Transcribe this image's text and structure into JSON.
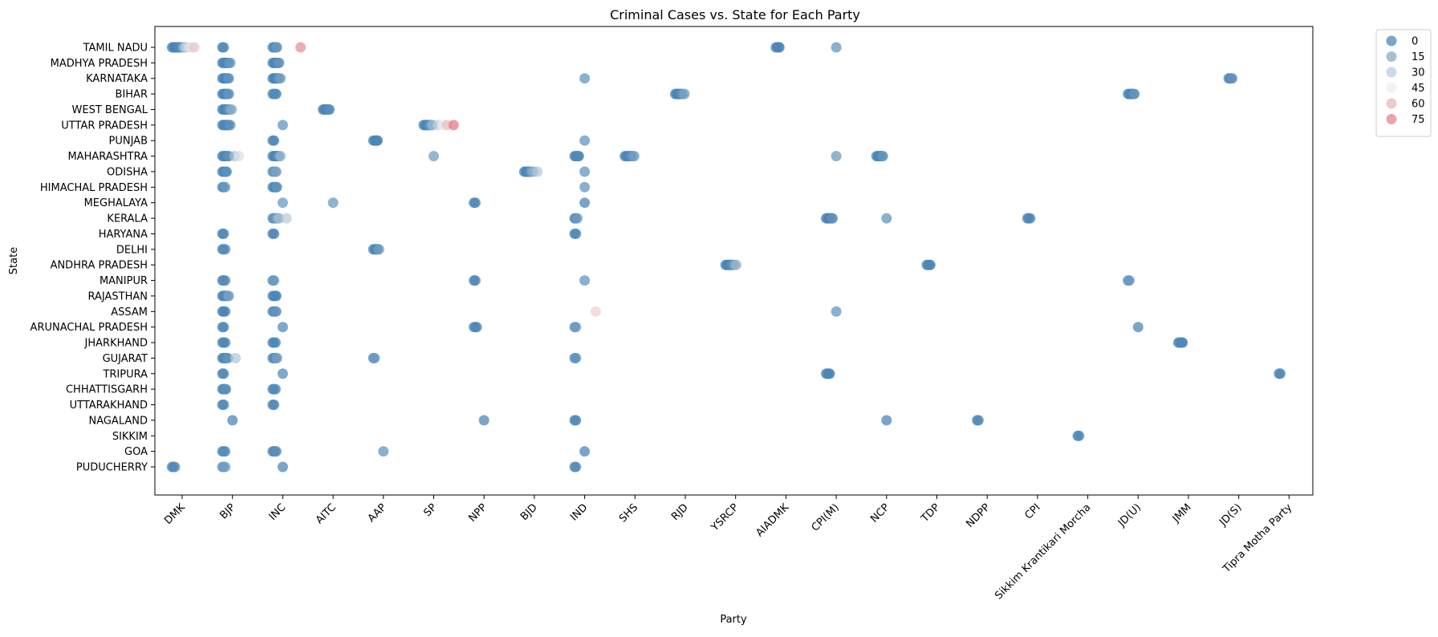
{
  "chart_data": {
    "type": "scatter",
    "title": "Criminal Cases vs. State for Each Party",
    "xlabel": "Party",
    "ylabel": "State",
    "x_categories": [
      "DMK",
      "BJP",
      "INC",
      "AITC",
      "AAP",
      "SP",
      "NPP",
      "BJD",
      "IND",
      "SHS",
      "RJD",
      "YSRCP",
      "AIADMK",
      "CPI(M)",
      "NCP",
      "TDP",
      "NDPP",
      "CPI",
      "Sikkim Krantikari Morcha",
      "JD(U)",
      "JMM",
      "JD(S)",
      "Tipra Motha Party"
    ],
    "y_categories": [
      "TAMIL NADU",
      "MADHYA PRADESH",
      "KARNATAKA",
      "BIHAR",
      "WEST BENGAL",
      "UTTAR PRADESH",
      "PUNJAB",
      "MAHARASHTRA",
      "ODISHA",
      "HIMACHAL PRADESH",
      "MEGHALAYA",
      "KERALA",
      "HARYANA",
      "DELHI",
      "ANDHRA PRADESH",
      "MANIPUR",
      "RAJASTHAN",
      "ASSAM",
      "ARUNACHAL PRADESH",
      "JHARKHAND",
      "GUJARAT",
      "TRIPURA",
      "CHHATTISGARH",
      "UTTARAKHAND",
      "NAGALAND",
      "SIKKIM",
      "GOA",
      "PUDUCHERRY"
    ],
    "hue_label": "Criminal cases",
    "legend": {
      "title": "",
      "position": "upper right, outside plot",
      "entries": [
        "0",
        "15",
        "30",
        "45",
        "60",
        "75"
      ]
    },
    "colormap": {
      "low": "#4682b4",
      "mid": "#eeeeee",
      "high": "#e0707a",
      "range": [
        0,
        80
      ]
    },
    "jitter_note": "strip plot: horizontal jitter within each party column",
    "groups": [
      {
        "party": "DMK",
        "state": "TAMIL NADU",
        "cases": [
          0,
          0,
          0,
          0,
          1,
          1,
          2,
          3,
          5,
          8,
          12,
          18,
          25,
          32,
          40,
          48,
          55
        ]
      },
      {
        "party": "DMK",
        "state": "PUDUCHERRY",
        "cases": [
          0,
          1,
          4
        ]
      },
      {
        "party": "BJP",
        "state": "TAMIL NADU",
        "cases": [
          0,
          1
        ]
      },
      {
        "party": "BJP",
        "state": "MADHYA PRADESH",
        "cases": [
          0,
          0,
          0,
          1,
          2,
          3,
          6,
          9
        ]
      },
      {
        "party": "BJP",
        "state": "KARNATAKA",
        "cases": [
          0,
          0,
          0,
          1,
          2,
          4,
          8
        ]
      },
      {
        "party": "BJP",
        "state": "BIHAR",
        "cases": [
          0,
          0,
          0,
          1,
          2,
          5,
          8
        ]
      },
      {
        "party": "BJP",
        "state": "WEST BENGAL",
        "cases": [
          0,
          0,
          0,
          1,
          2,
          4,
          7,
          12,
          18
        ]
      },
      {
        "party": "BJP",
        "state": "UTTAR PRADESH",
        "cases": [
          0,
          0,
          0,
          1,
          2,
          3,
          4,
          6
        ]
      },
      {
        "party": "BJP",
        "state": "MAHARASHTRA",
        "cases": [
          0,
          0,
          0,
          1,
          2,
          4,
          7,
          25,
          38
        ]
      },
      {
        "party": "BJP",
        "state": "ODISHA",
        "cases": [
          0,
          0,
          1,
          3,
          6
        ]
      },
      {
        "party": "BJP",
        "state": "HIMACHAL PRADESH",
        "cases": [
          0,
          0,
          10
        ]
      },
      {
        "party": "BJP",
        "state": "HARYANA",
        "cases": [
          0,
          0
        ]
      },
      {
        "party": "BJP",
        "state": "DELHI",
        "cases": [
          0,
          2,
          4
        ]
      },
      {
        "party": "BJP",
        "state": "MANIPUR",
        "cases": [
          0,
          1,
          4
        ]
      },
      {
        "party": "BJP",
        "state": "RAJASTHAN",
        "cases": [
          0,
          0,
          1,
          2,
          4,
          8,
          14
        ]
      },
      {
        "party": "BJP",
        "state": "ASSAM",
        "cases": [
          0,
          0,
          1
        ]
      },
      {
        "party": "BJP",
        "state": "ARUNACHAL PRADESH",
        "cases": [
          0,
          1
        ]
      },
      {
        "party": "BJP",
        "state": "JHARKHAND",
        "cases": [
          0,
          1,
          2
        ]
      },
      {
        "party": "BJP",
        "state": "GUJARAT",
        "cases": [
          0,
          0,
          1,
          2,
          4,
          8,
          28
        ]
      },
      {
        "party": "BJP",
        "state": "TRIPURA",
        "cases": [
          0,
          1
        ]
      },
      {
        "party": "BJP",
        "state": "CHHATTISGARH",
        "cases": [
          0,
          0,
          2,
          6
        ]
      },
      {
        "party": "BJP",
        "state": "UTTARAKHAND",
        "cases": [
          0,
          1
        ]
      },
      {
        "party": "BJP",
        "state": "NAGALAND",
        "cases": [
          0
        ]
      },
      {
        "party": "BJP",
        "state": "GOA",
        "cases": [
          0,
          2,
          4
        ]
      },
      {
        "party": "BJP",
        "state": "PUDUCHERRY",
        "cases": [
          4,
          8,
          12
        ]
      },
      {
        "party": "INC",
        "state": "TAMIL NADU",
        "cases": [
          0,
          1,
          2,
          4,
          10
        ]
      },
      {
        "party": "INC",
        "state": "MADHYA PRADESH",
        "cases": [
          0,
          0,
          0,
          1,
          2,
          4,
          8
        ]
      },
      {
        "party": "INC",
        "state": "KARNATAKA",
        "cases": [
          0,
          0,
          0,
          1,
          2,
          4,
          8,
          12
        ]
      },
      {
        "party": "INC",
        "state": "BIHAR",
        "cases": [
          0,
          1,
          2,
          5
        ]
      },
      {
        "party": "INC",
        "state": "UTTAR PRADESH",
        "cases": [
          6
        ]
      },
      {
        "party": "INC",
        "state": "PUNJAB",
        "cases": [
          0,
          0
        ]
      },
      {
        "party": "INC",
        "state": "MAHARASHTRA",
        "cases": [
          0,
          0,
          0,
          1,
          2,
          4,
          8,
          22
        ]
      },
      {
        "party": "INC",
        "state": "ODISHA",
        "cases": [
          2,
          6,
          10,
          14
        ]
      },
      {
        "party": "INC",
        "state": "HIMACHAL PRADESH",
        "cases": [
          0,
          0,
          1,
          3,
          8
        ]
      },
      {
        "party": "INC",
        "state": "MEGHALAYA",
        "cases": [
          8
        ]
      },
      {
        "party": "INC",
        "state": "KERALA",
        "cases": [
          2,
          4,
          6,
          9,
          12,
          18,
          24,
          30
        ]
      },
      {
        "party": "INC",
        "state": "HARYANA",
        "cases": [
          0,
          0
        ]
      },
      {
        "party": "INC",
        "state": "MANIPUR",
        "cases": [
          2,
          8
        ]
      },
      {
        "party": "INC",
        "state": "RAJASTHAN",
        "cases": [
          0,
          0,
          1,
          2
        ]
      },
      {
        "party": "INC",
        "state": "ASSAM",
        "cases": [
          0,
          1,
          5,
          8
        ]
      },
      {
        "party": "INC",
        "state": "ARUNACHAL PRADESH",
        "cases": [
          2
        ]
      },
      {
        "party": "INC",
        "state": "JHARKHAND",
        "cases": [
          0,
          1,
          2
        ]
      },
      {
        "party": "INC",
        "state": "GUJARAT",
        "cases": [
          0,
          1,
          4,
          8,
          12
        ]
      },
      {
        "party": "INC",
        "state": "TRIPURA",
        "cases": [
          2
        ]
      },
      {
        "party": "INC",
        "state": "CHHATTISGARH",
        "cases": [
          0,
          1,
          4
        ]
      },
      {
        "party": "INC",
        "state": "UTTARAKHAND",
        "cases": [
          0,
          1
        ]
      },
      {
        "party": "INC",
        "state": "GOA",
        "cases": [
          0,
          1,
          3,
          6
        ]
      },
      {
        "party": "INC",
        "state": "PUDUCHERRY",
        "cases": [
          0
        ]
      },
      {
        "party": "INC",
        "state": "TAMIL NADU",
        "cases": [
          72
        ]
      },
      {
        "party": "AITC",
        "state": "WEST BENGAL",
        "cases": [
          0,
          0,
          0,
          1,
          2,
          3,
          5
        ]
      },
      {
        "party": "AITC",
        "state": "MEGHALAYA",
        "cases": [
          8
        ]
      },
      {
        "party": "AAP",
        "state": "PUNJAB",
        "cases": [
          0,
          0,
          0,
          1,
          2
        ]
      },
      {
        "party": "AAP",
        "state": "DELHI",
        "cases": [
          0,
          0,
          1,
          2,
          4,
          12
        ]
      },
      {
        "party": "AAP",
        "state": "GUJARAT",
        "cases": [
          0,
          8
        ]
      },
      {
        "party": "AAP",
        "state": "GOA",
        "cases": [
          6
        ]
      },
      {
        "party": "SP",
        "state": "UTTAR PRADESH",
        "cases": [
          0,
          0,
          0,
          1,
          2,
          4,
          8,
          14,
          22,
          32,
          45,
          58,
          78
        ]
      },
      {
        "party": "SP",
        "state": "MAHARASHTRA",
        "cases": [
          10
        ]
      },
      {
        "party": "NPP",
        "state": "MEGHALAYA",
        "cases": [
          0,
          0
        ]
      },
      {
        "party": "NPP",
        "state": "MANIPUR",
        "cases": [
          0,
          0
        ]
      },
      {
        "party": "NPP",
        "state": "ARUNACHAL PRADESH",
        "cases": [
          0,
          1,
          2
        ]
      },
      {
        "party": "NPP",
        "state": "NAGALAND",
        "cases": [
          0
        ]
      },
      {
        "party": "BJD",
        "state": "ODISHA",
        "cases": [
          0,
          0,
          0,
          1,
          2,
          4,
          8,
          14,
          20,
          28
        ]
      },
      {
        "party": "IND",
        "state": "KARNATAKA",
        "cases": [
          6
        ]
      },
      {
        "party": "IND",
        "state": "PUNJAB",
        "cases": [
          6
        ]
      },
      {
        "party": "IND",
        "state": "MAHARASHTRA",
        "cases": [
          0,
          0,
          1,
          2,
          4
        ]
      },
      {
        "party": "IND",
        "state": "ODISHA",
        "cases": [
          6
        ]
      },
      {
        "party": "IND",
        "state": "HIMACHAL PRADESH",
        "cases": [
          6
        ]
      },
      {
        "party": "IND",
        "state": "MEGHALAYA",
        "cases": [
          0
        ]
      },
      {
        "party": "IND",
        "state": "KERALA",
        "cases": [
          0,
          0,
          12
        ]
      },
      {
        "party": "IND",
        "state": "HARYANA",
        "cases": [
          0,
          0
        ]
      },
      {
        "party": "IND",
        "state": "MANIPUR",
        "cases": [
          6
        ]
      },
      {
        "party": "IND",
        "state": "ASSAM",
        "cases": [
          52
        ]
      },
      {
        "party": "IND",
        "state": "ARUNACHAL PRADESH",
        "cases": [
          4,
          8
        ]
      },
      {
        "party": "IND",
        "state": "GUJARAT",
        "cases": [
          2,
          5
        ]
      },
      {
        "party": "IND",
        "state": "NAGALAND",
        "cases": [
          0,
          0
        ]
      },
      {
        "party": "IND",
        "state": "GOA",
        "cases": [
          0
        ]
      },
      {
        "party": "IND",
        "state": "PUDUCHERRY",
        "cases": [
          0,
          2
        ]
      },
      {
        "party": "SHS",
        "state": "MAHARASHTRA",
        "cases": [
          0,
          0,
          0,
          1,
          2,
          3,
          5,
          8,
          12
        ]
      },
      {
        "party": "RJD",
        "state": "BIHAR",
        "cases": [
          0,
          0,
          0,
          1,
          2,
          3,
          5,
          8,
          14
        ]
      },
      {
        "party": "YSRCP",
        "state": "ANDHRA PRADESH",
        "cases": [
          0,
          0,
          0,
          1,
          2,
          3,
          5,
          8,
          14,
          22
        ]
      },
      {
        "party": "AIADMK",
        "state": "TAMIL NADU",
        "cases": [
          0,
          0,
          1,
          2
        ]
      },
      {
        "party": "CPI(M)",
        "state": "TAMIL NADU",
        "cases": [
          6
        ]
      },
      {
        "party": "CPI(M)",
        "state": "MAHARASHTRA",
        "cases": [
          8
        ]
      },
      {
        "party": "CPI(M)",
        "state": "KERALA",
        "cases": [
          0,
          0,
          0,
          1,
          2,
          4,
          7
        ]
      },
      {
        "party": "CPI(M)",
        "state": "ASSAM",
        "cases": [
          6
        ]
      },
      {
        "party": "CPI(M)",
        "state": "TRIPURA",
        "cases": [
          0,
          0,
          1,
          2
        ]
      },
      {
        "party": "NCP",
        "state": "MAHARASHTRA",
        "cases": [
          0,
          0,
          0,
          1,
          2,
          4,
          8
        ]
      },
      {
        "party": "NCP",
        "state": "KERALA",
        "cases": [
          6
        ]
      },
      {
        "party": "NCP",
        "state": "NAGALAND",
        "cases": [
          0
        ]
      },
      {
        "party": "TDP",
        "state": "ANDHRA PRADESH",
        "cases": [
          0,
          0,
          1,
          2
        ]
      },
      {
        "party": "NDPP",
        "state": "NAGALAND",
        "cases": [
          0,
          0
        ]
      },
      {
        "party": "CPI",
        "state": "KERALA",
        "cases": [
          0,
          0,
          2
        ]
      },
      {
        "party": "Sikkim Krantikari Morcha",
        "state": "SIKKIM",
        "cases": [
          0,
          0
        ]
      },
      {
        "party": "JD(U)",
        "state": "BIHAR",
        "cases": [
          0,
          0,
          0,
          1,
          2,
          4,
          8
        ]
      },
      {
        "party": "JD(U)",
        "state": "MANIPUR",
        "cases": [
          0,
          8
        ]
      },
      {
        "party": "JD(U)",
        "state": "ARUNACHAL PRADESH",
        "cases": [
          0
        ]
      },
      {
        "party": "JMM",
        "state": "JHARKHAND",
        "cases": [
          0,
          0,
          1,
          2,
          3
        ]
      },
      {
        "party": "JD(S)",
        "state": "KARNATAKA",
        "cases": [
          0,
          0,
          1,
          8
        ]
      },
      {
        "party": "Tipra Motha Party",
        "state": "TRIPURA",
        "cases": [
          0,
          0
        ]
      }
    ]
  }
}
